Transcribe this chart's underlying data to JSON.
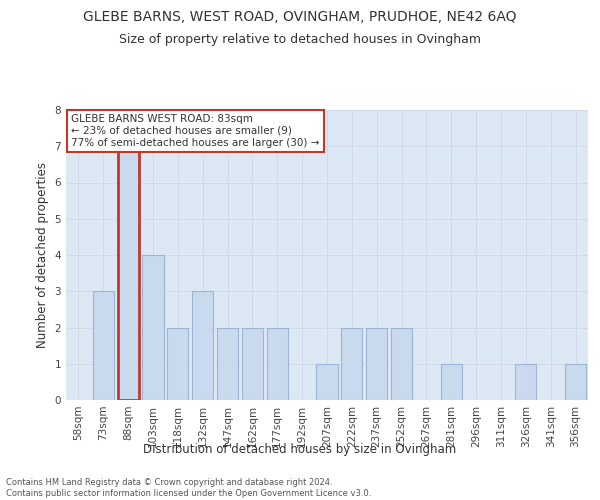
{
  "title": "GLEBE BARNS, WEST ROAD, OVINGHAM, PRUDHOE, NE42 6AQ",
  "subtitle": "Size of property relative to detached houses in Ovingham",
  "xlabel": "Distribution of detached houses by size in Ovingham",
  "ylabel": "Number of detached properties",
  "footer_line1": "Contains HM Land Registry data © Crown copyright and database right 2024.",
  "footer_line2": "Contains public sector information licensed under the Open Government Licence v3.0.",
  "categories": [
    "58sqm",
    "73sqm",
    "88sqm",
    "103sqm",
    "118sqm",
    "132sqm",
    "147sqm",
    "162sqm",
    "177sqm",
    "192sqm",
    "207sqm",
    "222sqm",
    "237sqm",
    "252sqm",
    "267sqm",
    "281sqm",
    "296sqm",
    "311sqm",
    "326sqm",
    "341sqm",
    "356sqm"
  ],
  "values": [
    0,
    3,
    7,
    4,
    2,
    3,
    2,
    2,
    2,
    0,
    1,
    2,
    2,
    2,
    0,
    1,
    0,
    0,
    1,
    0,
    1
  ],
  "highlight_index": 2,
  "bar_color": "#c9d9ee",
  "bar_edge_color": "#9ab5d5",
  "highlight_bar_edge_color": "#c0392b",
  "annotation_text": "GLEBE BARNS WEST ROAD: 83sqm\n← 23% of detached houses are smaller (9)\n77% of semi-detached houses are larger (30) →",
  "annotation_box_color": "#ffffff",
  "annotation_box_edge_color": "#c0392b",
  "ylim": [
    0,
    8
  ],
  "yticks": [
    0,
    1,
    2,
    3,
    4,
    5,
    6,
    7,
    8
  ],
  "grid_color": "#d0d8e8",
  "background_color": "#dde8f5",
  "title_fontsize": 10,
  "subtitle_fontsize": 9,
  "ylabel_fontsize": 8.5,
  "xlabel_fontsize": 8.5,
  "tick_fontsize": 7.5,
  "annotation_fontsize": 7.5
}
